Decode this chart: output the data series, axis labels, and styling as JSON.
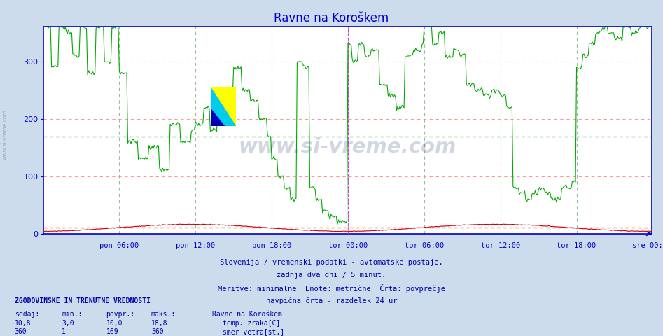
{
  "title": "Ravne na Koroškem",
  "bg_color": "#ccdcec",
  "plot_bg_color": "#ffffff",
  "grid_color_h": "#ff9999",
  "grid_color_v": "#99bb99",
  "axis_color": "#0000cc",
  "title_color": "#0000cc",
  "text_color": "#0000aa",
  "temp_color": "#cc0000",
  "wind_color": "#00aa00",
  "avg_temp_color": "#cc0000",
  "avg_wind_color": "#009900",
  "ylim": [
    0,
    360
  ],
  "yticks": [
    0,
    100,
    200,
    300
  ],
  "n_points": 576,
  "x_tick_labels": [
    "pon 06:00",
    "pon 12:00",
    "pon 18:00",
    "tor 00:00",
    "tor 06:00",
    "tor 12:00",
    "tor 18:00",
    "sre 00:00"
  ],
  "x_tick_positions": [
    72,
    144,
    216,
    288,
    360,
    432,
    504,
    575
  ],
  "vline_pos": 288,
  "avg_temp": 10.0,
  "avg_wind": 169,
  "watermark": "www.si-vreme.com",
  "subtitle1": "Slovenija / vremenski podatki - avtomatske postaje.",
  "subtitle2": "zadnja dva dni / 5 minut.",
  "subtitle3": "Meritve: minimalne  Enote: metrične  Črta: povprečje",
  "subtitle4": "navpična črta - razdelek 24 ur",
  "legend_title": "Ravne na Koroškem",
  "legend_temp": "temp. zraka[C]",
  "legend_wind": "smer vetra[st.]",
  "stats_header": "ZGODOVINSKE IN TRENUTNE VREDNOSTI",
  "col_sedaj": "sedaj:",
  "col_min": "min.:",
  "col_povpr": "povpr.:",
  "col_maks": "maks.:",
  "temp_sedaj": "10,8",
  "temp_min": "3,0",
  "temp_povpr": "10,0",
  "temp_maks": "18,8",
  "wind_sedaj": "360",
  "wind_min": "1",
  "wind_povpr": "169",
  "wind_maks": "360"
}
